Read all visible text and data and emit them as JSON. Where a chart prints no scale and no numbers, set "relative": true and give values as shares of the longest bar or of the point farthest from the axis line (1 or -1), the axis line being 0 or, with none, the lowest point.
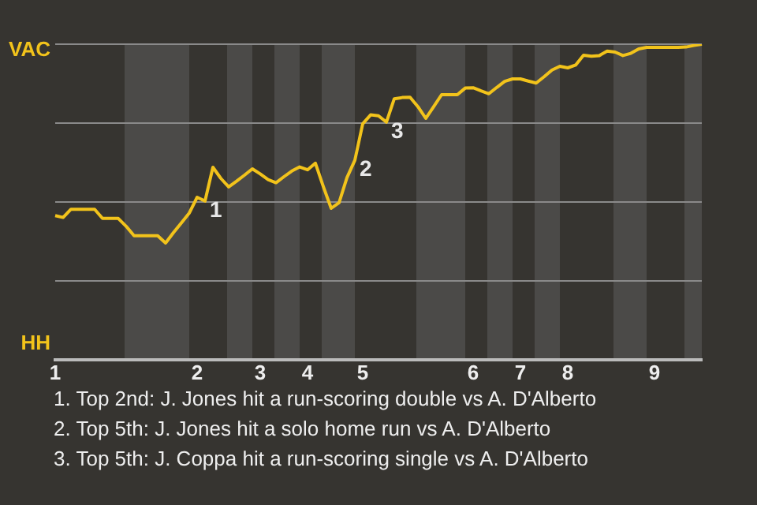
{
  "chart_data": {
    "type": "line",
    "relative": true,
    "categories": [
      "1",
      null,
      null,
      null,
      null,
      null,
      null,
      null,
      null,
      null,
      null,
      null,
      null,
      null,
      null,
      null,
      null,
      null,
      "2",
      null,
      null,
      null,
      null,
      null,
      null,
      null,
      "3",
      null,
      null,
      null,
      null,
      null,
      "4",
      null,
      null,
      null,
      null,
      null,
      null,
      "5",
      null,
      null,
      null,
      null,
      null,
      null,
      null,
      null,
      null,
      null,
      null,
      null,
      null,
      "6",
      null,
      null,
      null,
      null,
      null,
      "7",
      null,
      null,
      null,
      null,
      null,
      "8",
      null,
      null,
      null,
      null,
      null,
      null,
      null,
      null,
      null,
      null,
      "9",
      null,
      null,
      null,
      null,
      null,
      null
    ],
    "grid": "y",
    "legend": false,
    "marker": "none",
    "line_style": "solid",
    "series": [
      {
        "color": "#f2c31b",
        "values": [
          0.457,
          0.451,
          0.477,
          0.477,
          0.477,
          0.477,
          0.448,
          0.448,
          0.448,
          0.423,
          0.393,
          0.393,
          0.393,
          0.393,
          0.37,
          0.403,
          0.434,
          0.465,
          0.515,
          0.503,
          0.61,
          0.575,
          0.548,
          0.566,
          0.585,
          0.605,
          0.589,
          0.571,
          0.561,
          0.58,
          0.598,
          0.611,
          0.602,
          0.623,
          0.549,
          0.48,
          0.498,
          0.577,
          0.632,
          0.748,
          0.776,
          0.773,
          0.753,
          0.827,
          0.831,
          0.832,
          0.802,
          0.765,
          0.802,
          0.84,
          0.84,
          0.84,
          0.861,
          0.862,
          0.852,
          0.843,
          0.863,
          0.882,
          0.89,
          0.89,
          0.883,
          0.877,
          0.897,
          0.918,
          0.93,
          0.925,
          0.934,
          0.965,
          0.962,
          0.964,
          0.978,
          0.975,
          0.964,
          0.971,
          0.985,
          0.99,
          0.99,
          0.99,
          0.99,
          0.99,
          0.991,
          0.996,
          1.0
        ]
      }
    ],
    "annotations": [
      "VAC",
      "HH",
      "1",
      "2",
      "3",
      "1. Top 2nd: J. Jones hit a run-scoring double vs A. D'Alberto",
      "2. Top 5th: J. Jones hit a solo home run vs A. D'Alberto",
      "3. Top 5th: J. Coppa hit a run-scoring single vs A. D'Alberto"
    ]
  }
}
